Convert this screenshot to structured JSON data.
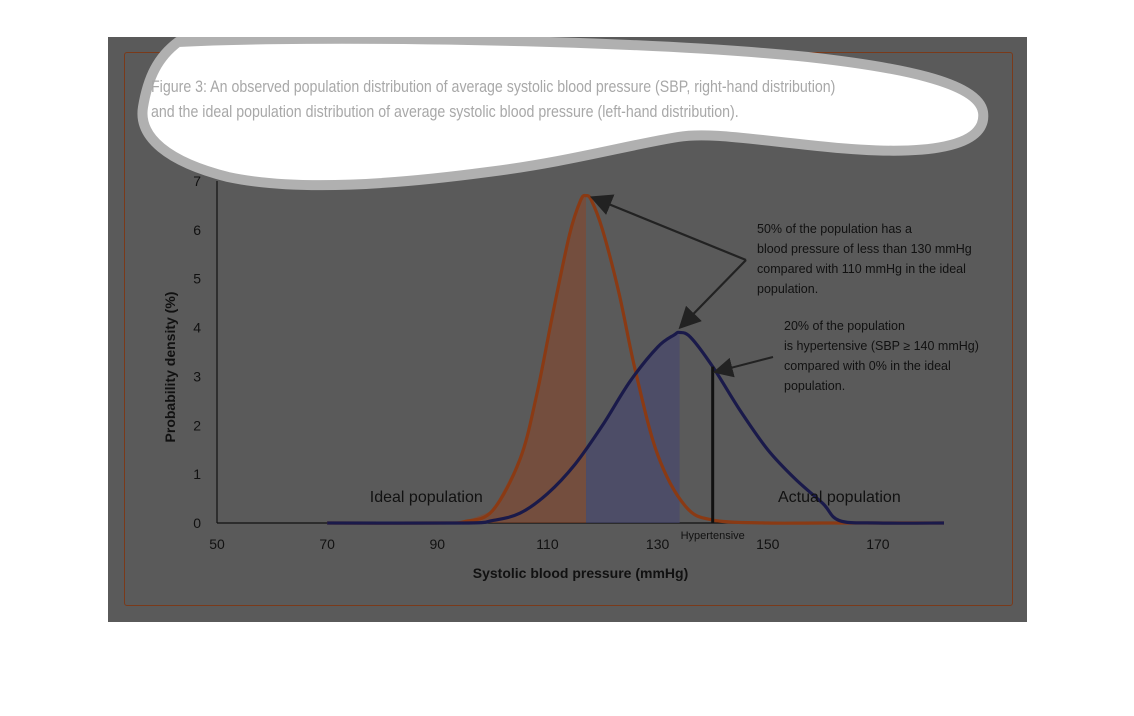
{
  "caption": {
    "line1": "Figure 3: An observed population distribution of average systolic blood pressure (SBP, right-hand distribution)",
    "line2": "and the ideal population distribution of average systolic blood pressure (left-hand distribution)."
  },
  "chart_data": {
    "type": "area",
    "xlabel": "Systolic blood pressure (mmHg)",
    "ylabel": "Probability density (%)",
    "xlim": [
      50,
      182
    ],
    "ylim": [
      0,
      7
    ],
    "xticks": [
      "50",
      "70",
      "90",
      "110",
      "130",
      "150",
      "170"
    ],
    "yticks": [
      "0",
      "1",
      "2",
      "3",
      "4",
      "5",
      "6",
      "7"
    ],
    "grid": false,
    "series": [
      {
        "name": "Ideal population",
        "color": "#8a3a14",
        "shaded_to_x": 117,
        "x": [
          70,
          90,
          95,
          100,
          105,
          108,
          111,
          114,
          116,
          117,
          118,
          120,
          123,
          126,
          130,
          135,
          140,
          150,
          160,
          182
        ],
        "y": [
          0,
          0,
          0.03,
          0.25,
          1.3,
          2.6,
          4.3,
          5.9,
          6.6,
          6.7,
          6.6,
          6.0,
          4.7,
          3.1,
          1.4,
          0.35,
          0.06,
          0,
          0,
          0
        ]
      },
      {
        "name": "Actual population",
        "color": "#1a1a4a",
        "shaded_from_x": 117,
        "shaded_to_x": 134,
        "x": [
          70,
          95,
          100,
          105,
          110,
          115,
          120,
          125,
          130,
          133,
          134,
          136,
          140,
          145,
          150,
          155,
          160,
          163,
          170,
          182
        ],
        "y": [
          0,
          0,
          0.05,
          0.2,
          0.6,
          1.2,
          2.0,
          2.9,
          3.6,
          3.85,
          3.9,
          3.8,
          3.2,
          2.3,
          1.5,
          0.9,
          0.4,
          0.05,
          0,
          0
        ]
      }
    ],
    "hypertensive_line_x": 140,
    "annotations": {
      "a1": [
        "50% of the population has a",
        "blood pressure of less than 130 mmHg",
        "compared with 110 mmHg in the ideal",
        "population."
      ],
      "a2": [
        "20% of the population",
        "is hypertensive (SBP  ≥ 140 mmHg)",
        "compared with 0% in the ideal",
        "population."
      ],
      "hypertensive": "Hypertensive",
      "ideal": "Ideal population",
      "actual": "Actual population"
    }
  }
}
